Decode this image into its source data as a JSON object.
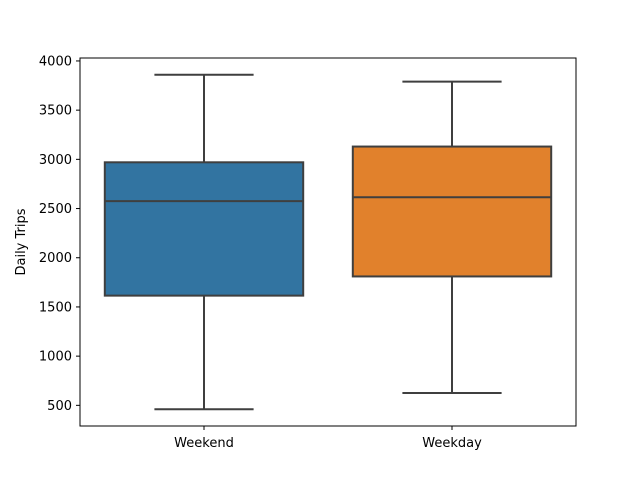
{
  "chart_data": {
    "type": "box",
    "title": "",
    "xlabel": "",
    "ylabel": "Daily Trips",
    "ylim": [
      290,
      4030
    ],
    "yticks": [
      500,
      1000,
      1500,
      2000,
      2500,
      3000,
      3500,
      4000
    ],
    "grid": false,
    "categories": [
      "Weekend",
      "Weekday"
    ],
    "boxes": [
      {
        "category": "Weekend",
        "whisker_low": 460,
        "q1": 1615,
        "median": 2575,
        "q3": 2970,
        "whisker_high": 3860,
        "color": "#3274a1"
      },
      {
        "category": "Weekday",
        "whisker_low": 625,
        "q1": 1810,
        "median": 2615,
        "q3": 3130,
        "whisker_high": 3790,
        "color": "#e1812c"
      }
    ],
    "line_color": "#3f3f3f"
  }
}
